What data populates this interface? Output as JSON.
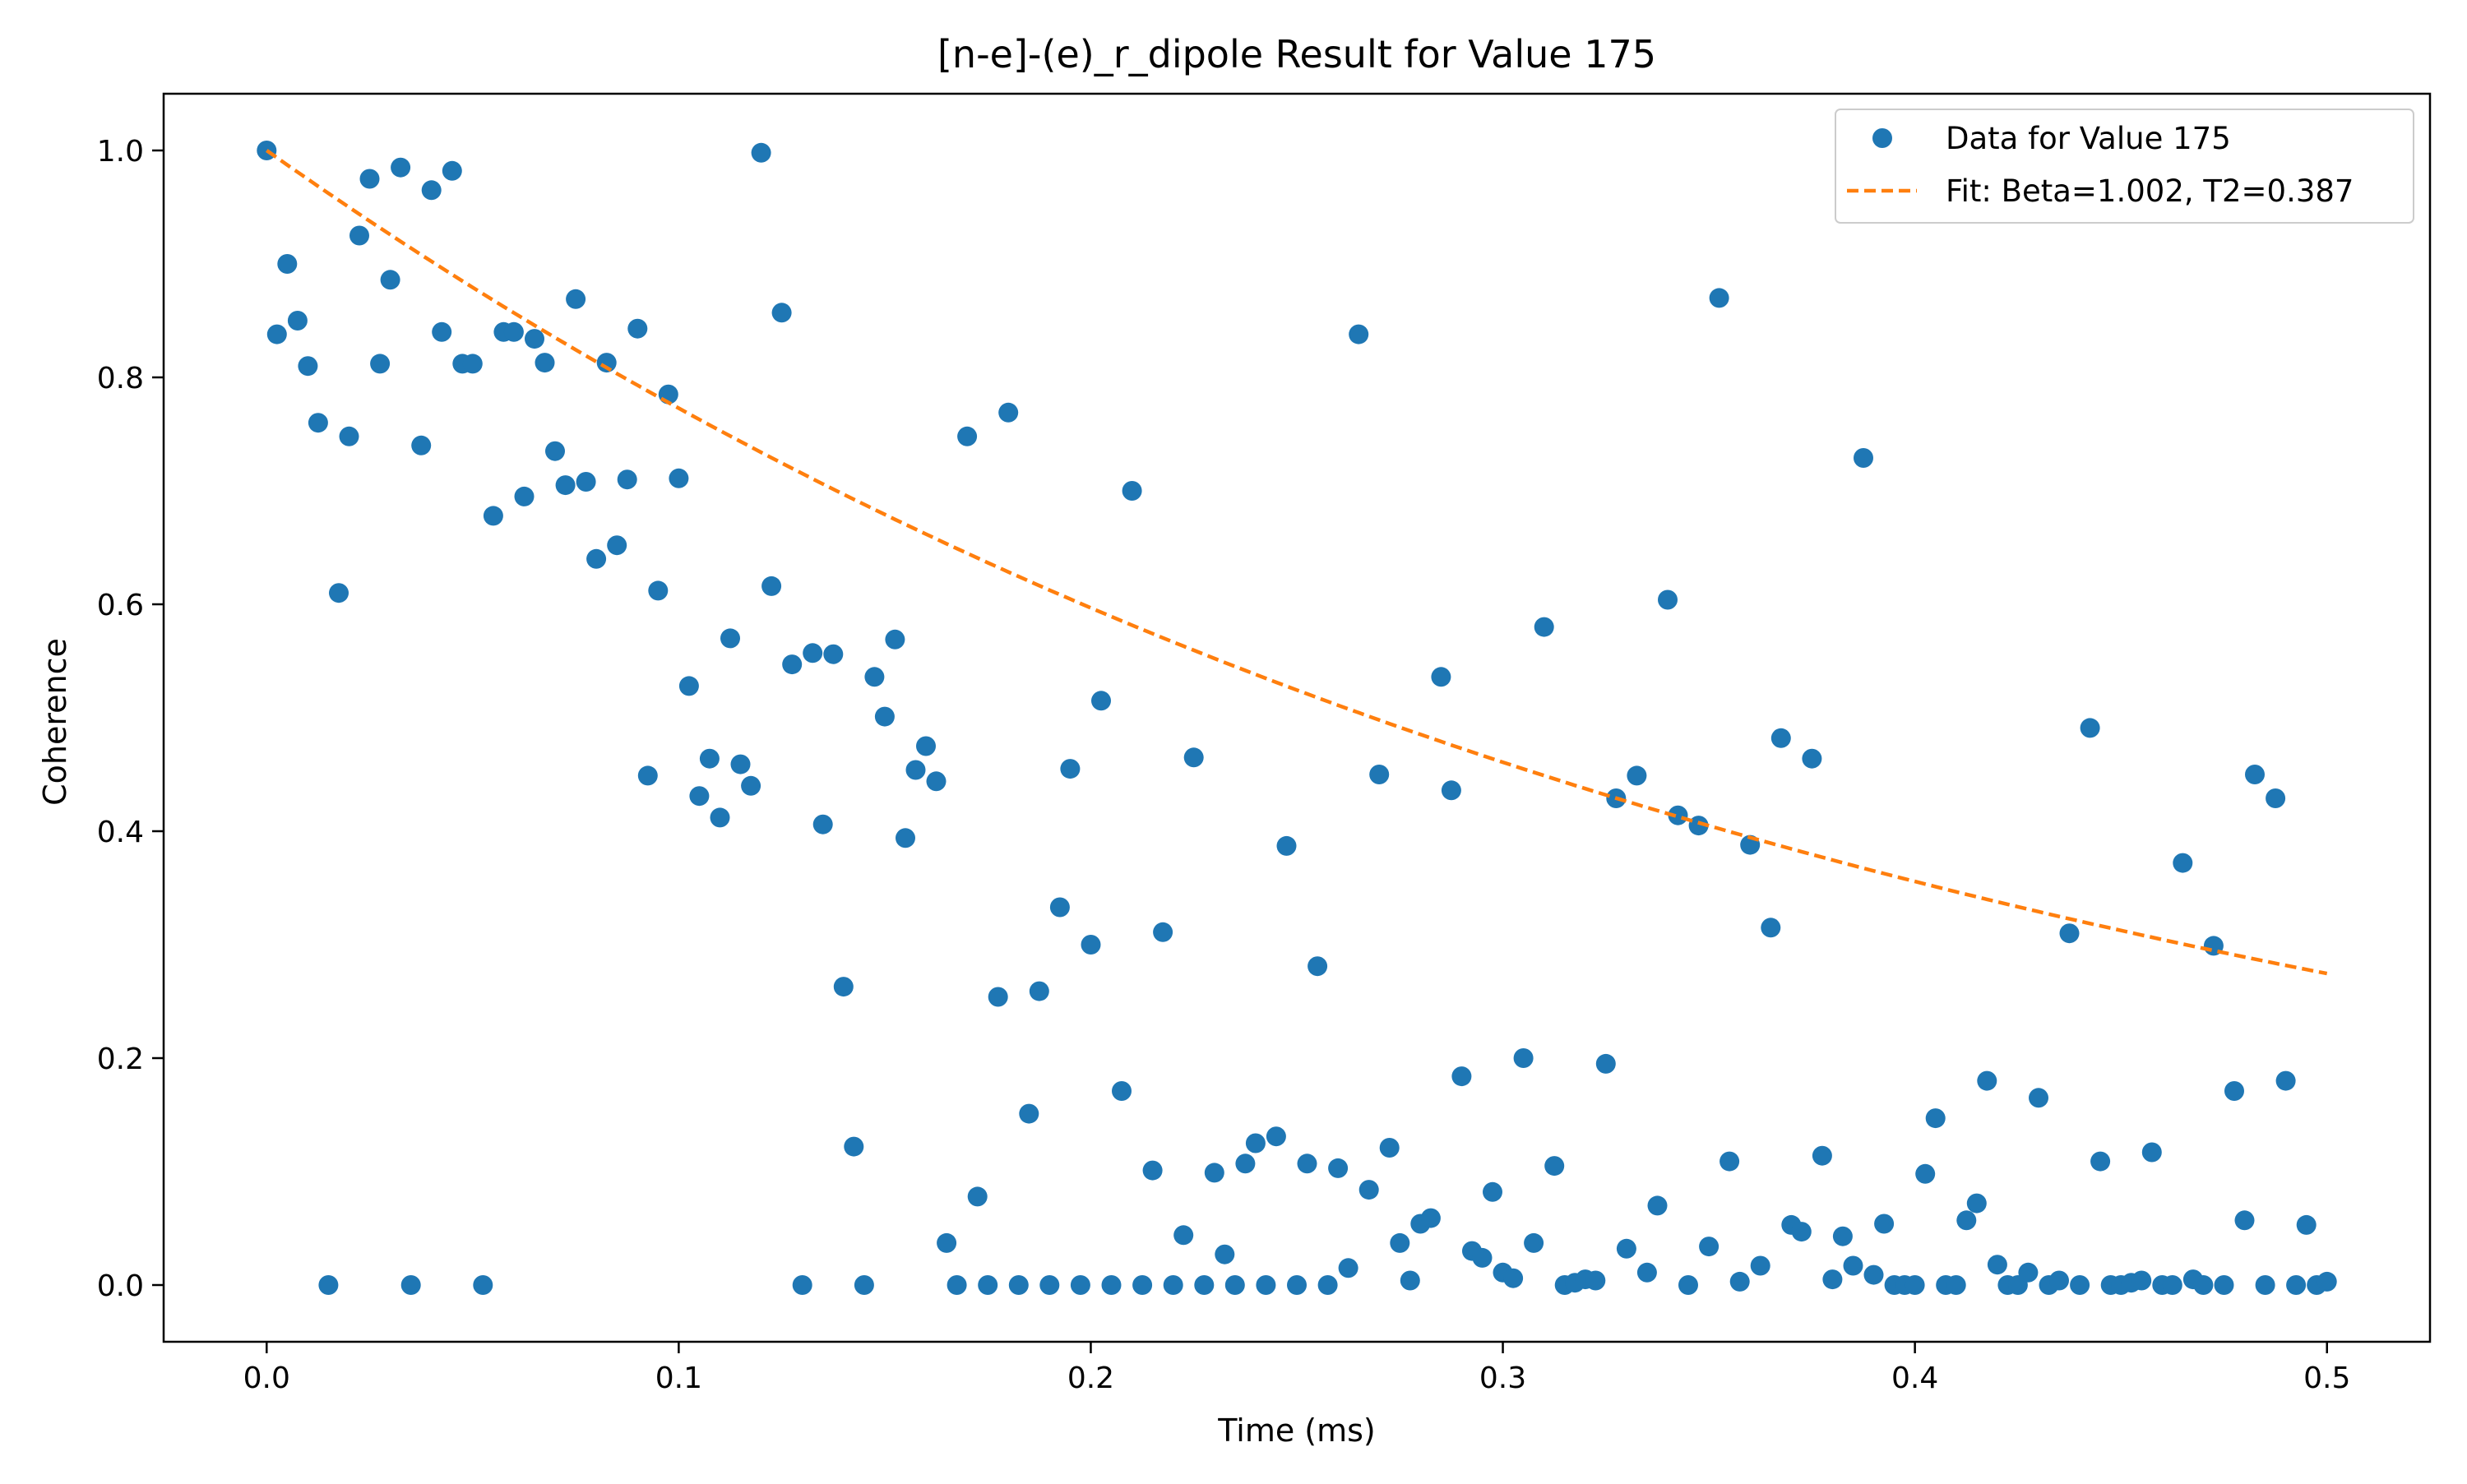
{
  "chart_data": {
    "type": "scatter",
    "title": "[n-e]-(e)_r_dipole Result for Value 175",
    "xlabel": "Time (ms)",
    "ylabel": "Coherence",
    "xlim": [
      -0.025,
      0.525
    ],
    "ylim": [
      -0.05,
      1.05
    ],
    "xticks": [
      0.0,
      0.1,
      0.2,
      0.3,
      0.4,
      0.5
    ],
    "xtick_labels": [
      "0.0",
      "0.1",
      "0.2",
      "0.3",
      "0.4",
      "0.5"
    ],
    "yticks": [
      0.0,
      0.2,
      0.4,
      0.6,
      0.8,
      1.0
    ],
    "ytick_labels": [
      "0.0",
      "0.2",
      "0.4",
      "0.6",
      "0.8",
      "1.0"
    ],
    "grid": false,
    "legend_position": "top-right",
    "series": [
      {
        "name": "Data for Value 175",
        "kind": "scatter",
        "color": "#1f77b4",
        "points": [
          [
            0.0,
            1.0
          ],
          [
            0.0025,
            0.838
          ],
          [
            0.005,
            0.9
          ],
          [
            0.0075,
            0.85
          ],
          [
            0.01,
            0.81
          ],
          [
            0.0125,
            0.76
          ],
          [
            0.015,
            0.0
          ],
          [
            0.0175,
            0.61
          ],
          [
            0.02,
            0.748
          ],
          [
            0.0225,
            0.925
          ],
          [
            0.025,
            0.975
          ],
          [
            0.0275,
            0.812
          ],
          [
            0.03,
            0.886
          ],
          [
            0.0325,
            0.985
          ],
          [
            0.035,
            0.0
          ],
          [
            0.0375,
            0.74
          ],
          [
            0.04,
            0.965
          ],
          [
            0.0425,
            0.84
          ],
          [
            0.045,
            0.982
          ],
          [
            0.0475,
            0.812
          ],
          [
            0.05,
            0.812
          ],
          [
            0.0525,
            0.0
          ],
          [
            0.055,
            0.678
          ],
          [
            0.0575,
            0.84
          ],
          [
            0.06,
            0.84
          ],
          [
            0.0625,
            0.695
          ],
          [
            0.065,
            0.834
          ],
          [
            0.0675,
            0.813
          ],
          [
            0.07,
            0.735
          ],
          [
            0.0725,
            0.705
          ],
          [
            0.075,
            0.869
          ],
          [
            0.0775,
            0.708
          ],
          [
            0.08,
            0.64
          ],
          [
            0.0825,
            0.813
          ],
          [
            0.085,
            0.652
          ],
          [
            0.0875,
            0.71
          ],
          [
            0.09,
            0.843
          ],
          [
            0.0925,
            0.449
          ],
          [
            0.095,
            0.612
          ],
          [
            0.0975,
            0.785
          ],
          [
            0.1,
            0.711
          ],
          [
            0.1025,
            0.528
          ],
          [
            0.105,
            0.431
          ],
          [
            0.1075,
            0.464
          ],
          [
            0.11,
            0.412
          ],
          [
            0.1125,
            0.57
          ],
          [
            0.115,
            0.459
          ],
          [
            0.1175,
            0.44
          ],
          [
            0.12,
            0.998
          ],
          [
            0.1225,
            0.616
          ],
          [
            0.125,
            0.857
          ],
          [
            0.1275,
            0.547
          ],
          [
            0.13,
            0.0
          ],
          [
            0.1325,
            0.557
          ],
          [
            0.135,
            0.406
          ],
          [
            0.1375,
            0.556
          ],
          [
            0.14,
            0.263
          ],
          [
            0.1425,
            0.122
          ],
          [
            0.145,
            0.0
          ],
          [
            0.1475,
            0.536
          ],
          [
            0.15,
            0.501
          ],
          [
            0.1525,
            0.569
          ],
          [
            0.155,
            0.394
          ],
          [
            0.1575,
            0.454
          ],
          [
            0.16,
            0.475
          ],
          [
            0.1625,
            0.444
          ],
          [
            0.165,
            0.037
          ],
          [
            0.1675,
            0.0
          ],
          [
            0.17,
            0.748
          ],
          [
            0.1725,
            0.078
          ],
          [
            0.175,
            0.0
          ],
          [
            0.1775,
            0.254
          ],
          [
            0.18,
            0.769
          ],
          [
            0.1825,
            0.0
          ],
          [
            0.185,
            0.151
          ],
          [
            0.1875,
            0.259
          ],
          [
            0.19,
            0.0
          ],
          [
            0.1925,
            0.333
          ],
          [
            0.195,
            0.455
          ],
          [
            0.1975,
            0.0
          ],
          [
            0.2,
            0.3
          ],
          [
            0.2025,
            0.515
          ],
          [
            0.205,
            0.0
          ],
          [
            0.2075,
            0.171
          ],
          [
            0.21,
            0.7
          ],
          [
            0.2125,
            0.0
          ],
          [
            0.215,
            0.101
          ],
          [
            0.2175,
            0.311
          ],
          [
            0.22,
            0.0
          ],
          [
            0.2225,
            0.044
          ],
          [
            0.225,
            0.465
          ],
          [
            0.2275,
            0.0
          ],
          [
            0.23,
            0.099
          ],
          [
            0.2325,
            0.027
          ],
          [
            0.235,
            0.0
          ],
          [
            0.2375,
            0.107
          ],
          [
            0.24,
            0.125
          ],
          [
            0.2425,
            0.0
          ],
          [
            0.245,
            0.131
          ],
          [
            0.2475,
            0.387
          ],
          [
            0.25,
            0.0
          ],
          [
            0.2525,
            0.107
          ],
          [
            0.255,
            0.281
          ],
          [
            0.2575,
            0.0
          ],
          [
            0.26,
            0.103
          ],
          [
            0.2625,
            0.015
          ],
          [
            0.265,
            0.838
          ],
          [
            0.2675,
            0.084
          ],
          [
            0.27,
            0.45
          ],
          [
            0.2725,
            0.121
          ],
          [
            0.275,
            0.037
          ],
          [
            0.2775,
            0.004
          ],
          [
            0.28,
            0.054
          ],
          [
            0.2825,
            0.059
          ],
          [
            0.285,
            0.536
          ],
          [
            0.2875,
            0.436
          ],
          [
            0.29,
            0.184
          ],
          [
            0.2925,
            0.03
          ],
          [
            0.295,
            0.024
          ],
          [
            0.2975,
            0.082
          ],
          [
            0.3,
            0.011
          ],
          [
            0.3025,
            0.006
          ],
          [
            0.305,
            0.2
          ],
          [
            0.3075,
            0.037
          ],
          [
            0.31,
            0.58
          ],
          [
            0.3125,
            0.105
          ],
          [
            0.315,
            0.0
          ],
          [
            0.3175,
            0.002
          ],
          [
            0.32,
            0.005
          ],
          [
            0.3225,
            0.004
          ],
          [
            0.325,
            0.195
          ],
          [
            0.3275,
            0.429
          ],
          [
            0.33,
            0.032
          ],
          [
            0.3325,
            0.449
          ],
          [
            0.335,
            0.011
          ],
          [
            0.3375,
            0.07
          ],
          [
            0.34,
            0.604
          ],
          [
            0.3425,
            0.414
          ],
          [
            0.345,
            0.0
          ],
          [
            0.3475,
            0.405
          ],
          [
            0.35,
            0.034
          ],
          [
            0.3525,
            0.87
          ],
          [
            0.355,
            0.109
          ],
          [
            0.3575,
            0.003
          ],
          [
            0.36,
            0.388
          ],
          [
            0.3625,
            0.017
          ],
          [
            0.365,
            0.315
          ],
          [
            0.3675,
            0.482
          ],
          [
            0.37,
            0.053
          ],
          [
            0.3725,
            0.047
          ],
          [
            0.375,
            0.464
          ],
          [
            0.3775,
            0.114
          ],
          [
            0.38,
            0.005
          ],
          [
            0.3825,
            0.043
          ],
          [
            0.385,
            0.017
          ],
          [
            0.3875,
            0.729
          ],
          [
            0.39,
            0.009
          ],
          [
            0.3925,
            0.054
          ],
          [
            0.395,
            0.0
          ],
          [
            0.3975,
            0.0
          ],
          [
            0.4,
            0.0
          ],
          [
            0.4025,
            0.098
          ],
          [
            0.405,
            0.147
          ],
          [
            0.4075,
            0.0
          ],
          [
            0.41,
            0.0
          ],
          [
            0.4125,
            0.057
          ],
          [
            0.415,
            0.072
          ],
          [
            0.4175,
            0.18
          ],
          [
            0.42,
            0.018
          ],
          [
            0.4225,
            0.0
          ],
          [
            0.425,
            0.0
          ],
          [
            0.4275,
            0.011
          ],
          [
            0.43,
            0.165
          ],
          [
            0.4325,
            0.0
          ],
          [
            0.435,
            0.004
          ],
          [
            0.4375,
            0.31
          ],
          [
            0.44,
            0.0
          ],
          [
            0.4425,
            0.491
          ],
          [
            0.445,
            0.109
          ],
          [
            0.4475,
            0.0
          ],
          [
            0.45,
            0.0
          ],
          [
            0.4525,
            0.002
          ],
          [
            0.455,
            0.004
          ],
          [
            0.4575,
            0.117
          ],
          [
            0.46,
            0.0
          ],
          [
            0.4625,
            0.0
          ],
          [
            0.465,
            0.372
          ],
          [
            0.4675,
            0.005
          ],
          [
            0.47,
            0.0
          ],
          [
            0.4725,
            0.299
          ],
          [
            0.475,
            0.0
          ],
          [
            0.4775,
            0.171
          ],
          [
            0.48,
            0.057
          ],
          [
            0.4825,
            0.45
          ],
          [
            0.485,
            0.0
          ],
          [
            0.4875,
            0.429
          ],
          [
            0.49,
            0.18
          ],
          [
            0.4925,
            0.0
          ],
          [
            0.495,
            0.053
          ],
          [
            0.4975,
            0.0
          ],
          [
            0.5,
            0.003
          ]
        ]
      },
      {
        "name": "Fit: Beta=1.002, T2=0.387",
        "kind": "line",
        "style": "dashed",
        "color": "#ff7f0e",
        "model": "exp(-(t/T2)^Beta)",
        "beta": 1.002,
        "t2": 0.387,
        "t_range": [
          0.0,
          0.5
        ]
      }
    ]
  }
}
